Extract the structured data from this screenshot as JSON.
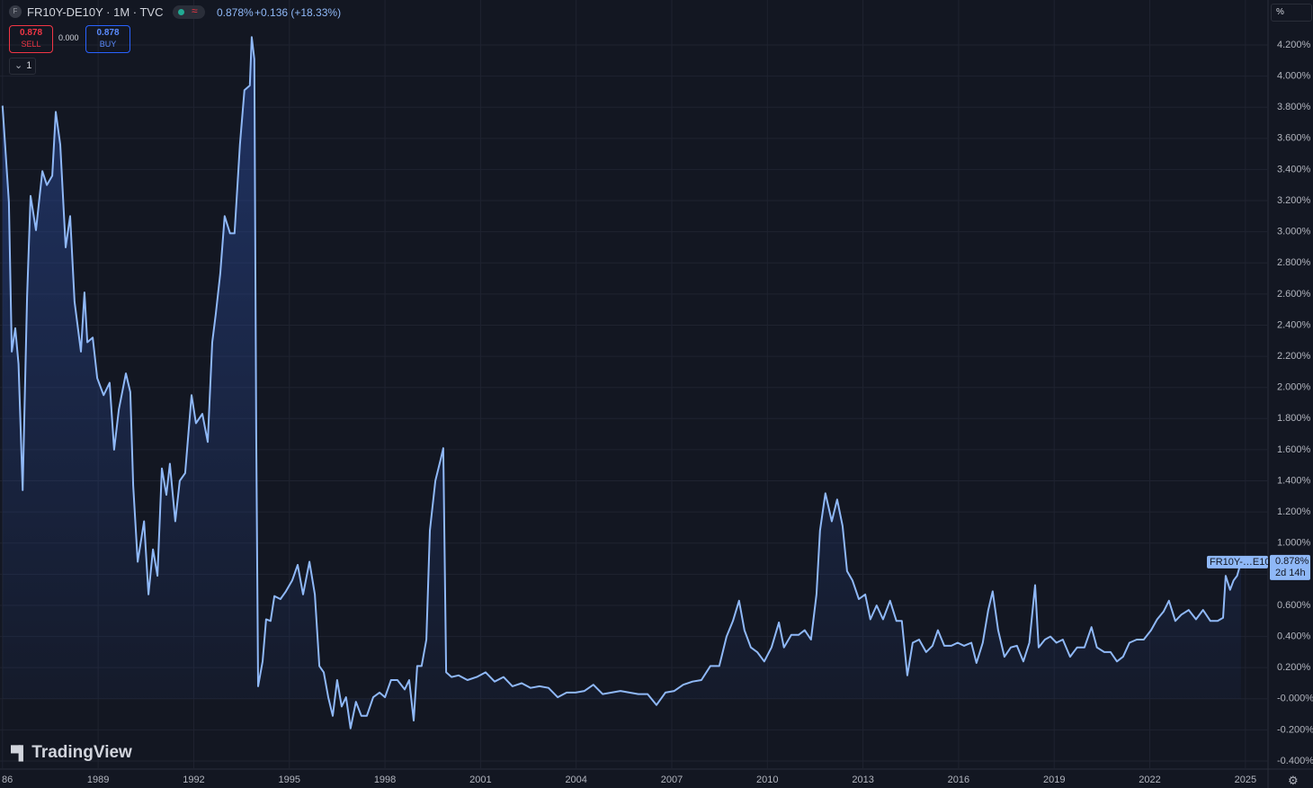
{
  "chart_data": {
    "type": "area",
    "legend_title": "FR10Y-DE10Y · 1M · TVC",
    "last_value": "0.878%",
    "change": "+0.136 (+18.33%)",
    "sell_price": "0.878",
    "sell_label": "SELL",
    "spread": "0.000",
    "buy_price": "0.878",
    "buy_label": "BUY",
    "interval_count": "1",
    "axis_unit": "%",
    "price_tag_name": "FR10Y-…E10Y",
    "price_tag_value": "0.878%",
    "countdown": "2d 14h",
    "logo": "TradingView",
    "color": "#8fb8f7",
    "grid": true,
    "x": [
      1986.0,
      1986.2,
      1986.29,
      1986.4,
      1986.5,
      1986.63,
      1986.77,
      1986.88,
      1987.05,
      1987.25,
      1987.39,
      1987.56,
      1987.67,
      1987.81,
      1987.98,
      1988.12,
      1988.26,
      1988.46,
      1988.57,
      1988.66,
      1988.83,
      1988.97,
      1989.17,
      1989.36,
      1989.5,
      1989.65,
      1989.87,
      1990.01,
      1990.1,
      1990.24,
      1990.44,
      1990.58,
      1990.72,
      1990.86,
      1991.0,
      1991.14,
      1991.25,
      1991.42,
      1991.56,
      1991.73,
      1991.93,
      1992.07,
      1992.27,
      1992.44,
      1992.58,
      1992.69,
      1992.83,
      1992.97,
      1993.14,
      1993.28,
      1993.45,
      1993.59,
      1993.76,
      1993.82,
      1993.9,
      1993.96,
      1994.02,
      1994.16,
      1994.27,
      1994.41,
      1994.53,
      1994.72,
      1994.89,
      1995.09,
      1995.26,
      1995.43,
      1995.63,
      1995.8,
      1995.94,
      1996.08,
      1996.22,
      1996.36,
      1996.5,
      1996.64,
      1996.78,
      1996.92,
      1997.09,
      1997.26,
      1997.43,
      1997.63,
      1997.83,
      1998.0,
      1998.19,
      1998.39,
      1998.62,
      1998.76,
      1998.9,
      1999.01,
      1999.15,
      1999.3,
      1999.41,
      1999.58,
      1999.75,
      1999.83,
      1999.92,
      2000.09,
      2000.31,
      2000.59,
      2000.88,
      2001.16,
      2001.44,
      2001.72,
      2002.0,
      2002.29,
      2002.57,
      2002.85,
      2003.13,
      2003.42,
      2003.7,
      2003.98,
      2004.26,
      2004.54,
      2004.83,
      2005.11,
      2005.39,
      2005.67,
      2005.95,
      2006.24,
      2006.52,
      2006.8,
      2007.08,
      2007.36,
      2007.65,
      2007.93,
      2008.21,
      2008.49,
      2008.72,
      2008.92,
      2009.11,
      2009.28,
      2009.48,
      2009.68,
      2009.9,
      2010.13,
      2010.36,
      2010.52,
      2010.75,
      2010.98,
      2011.17,
      2011.37,
      2011.54,
      2011.65,
      2011.82,
      2012.02,
      2012.19,
      2012.36,
      2012.5,
      2012.67,
      2012.87,
      2013.07,
      2013.23,
      2013.43,
      2013.63,
      2013.85,
      2014.05,
      2014.22,
      2014.39,
      2014.56,
      2014.76,
      2014.98,
      2015.18,
      2015.35,
      2015.55,
      2015.77,
      2015.97,
      2016.17,
      2016.4,
      2016.56,
      2016.76,
      2016.93,
      2017.07,
      2017.24,
      2017.44,
      2017.64,
      2017.83,
      2018.03,
      2018.22,
      2018.4,
      2018.51,
      2018.71,
      2018.88,
      2019.07,
      2019.27,
      2019.5,
      2019.72,
      2019.95,
      2020.17,
      2020.34,
      2020.57,
      2020.77,
      2020.97,
      2021.16,
      2021.36,
      2021.59,
      2021.81,
      2022.04,
      2022.23,
      2022.43,
      2022.6,
      2022.8,
      2022.99,
      2023.22,
      2023.45,
      2023.67,
      2023.9,
      2024.13,
      2024.3,
      2024.38,
      2024.52,
      2024.63,
      2024.74,
      2024.86
    ],
    "values": [
      3.81,
      3.19,
      2.23,
      2.38,
      2.15,
      1.34,
      2.58,
      3.23,
      3.01,
      3.39,
      3.3,
      3.36,
      3.77,
      3.56,
      2.9,
      3.1,
      2.55,
      2.23,
      2.61,
      2.29,
      2.32,
      2.06,
      1.95,
      2.03,
      1.6,
      1.86,
      2.09,
      1.97,
      1.37,
      0.88,
      1.14,
      0.67,
      0.96,
      0.79,
      1.48,
      1.31,
      1.51,
      1.14,
      1.4,
      1.45,
      1.95,
      1.77,
      1.83,
      1.65,
      2.29,
      2.47,
      2.73,
      3.1,
      2.99,
      2.99,
      3.56,
      3.91,
      3.94,
      4.25,
      4.11,
      1.71,
      0.08,
      0.24,
      0.51,
      0.5,
      0.66,
      0.64,
      0.69,
      0.76,
      0.86,
      0.67,
      0.88,
      0.67,
      0.21,
      0.17,
      0.01,
      -0.11,
      0.12,
      -0.05,
      0.01,
      -0.19,
      -0.02,
      -0.11,
      -0.11,
      0.01,
      0.04,
      0.01,
      0.12,
      0.12,
      0.06,
      0.12,
      -0.14,
      0.21,
      0.21,
      0.38,
      1.08,
      1.4,
      1.54,
      1.61,
      0.17,
      0.14,
      0.15,
      0.12,
      0.14,
      0.17,
      0.11,
      0.14,
      0.08,
      0.1,
      0.07,
      0.08,
      0.07,
      0.01,
      0.04,
      0.04,
      0.05,
      0.09,
      0.03,
      0.04,
      0.05,
      0.04,
      0.03,
      0.03,
      -0.04,
      0.04,
      0.05,
      0.09,
      0.11,
      0.12,
      0.21,
      0.21,
      0.4,
      0.5,
      0.63,
      0.44,
      0.33,
      0.3,
      0.24,
      0.33,
      0.49,
      0.33,
      0.41,
      0.41,
      0.44,
      0.38,
      0.67,
      1.08,
      1.32,
      1.14,
      1.28,
      1.11,
      0.82,
      0.76,
      0.64,
      0.67,
      0.51,
      0.6,
      0.51,
      0.63,
      0.5,
      0.5,
      0.15,
      0.36,
      0.38,
      0.3,
      0.34,
      0.44,
      0.34,
      0.34,
      0.36,
      0.34,
      0.36,
      0.23,
      0.36,
      0.57,
      0.69,
      0.44,
      0.27,
      0.33,
      0.34,
      0.24,
      0.36,
      0.73,
      0.33,
      0.38,
      0.4,
      0.36,
      0.38,
      0.27,
      0.33,
      0.33,
      0.46,
      0.33,
      0.3,
      0.3,
      0.24,
      0.27,
      0.36,
      0.38,
      0.38,
      0.44,
      0.51,
      0.56,
      0.63,
      0.5,
      0.54,
      0.57,
      0.51,
      0.57,
      0.5,
      0.5,
      0.52,
      0.79,
      0.7,
      0.76,
      0.79,
      0.878
    ],
    "xlim": [
      1985.92,
      2025.71
    ],
    "xticks": [
      {
        "value": 1986,
        "label": "86"
      },
      1989,
      1992,
      1995,
      1998,
      2001,
      2004,
      2007,
      2010,
      2013,
      2016,
      2019,
      2022,
      2025
    ],
    "ylim": [
      -0.452,
      4.46
    ],
    "yticks": [
      {
        "value": -0.4,
        "label": "-0.400%"
      },
      {
        "value": -0.2,
        "label": "-0.200%"
      },
      {
        "value": 0,
        "label": "-0.000%"
      },
      {
        "value": 0.2,
        "label": "0.200%"
      },
      {
        "value": 0.4,
        "label": "0.400%"
      },
      {
        "value": 0.6,
        "label": "0.600%"
      },
      {
        "value": 0.8,
        "label": "0.800%"
      },
      {
        "value": 1.0,
        "label": "1.000%"
      },
      {
        "value": 1.2,
        "label": "1.200%"
      },
      {
        "value": 1.4,
        "label": "1.400%"
      },
      {
        "value": 1.6,
        "label": "1.600%"
      },
      {
        "value": 1.8,
        "label": "1.800%"
      },
      {
        "value": 2.0,
        "label": "2.000%"
      },
      {
        "value": 2.2,
        "label": "2.200%"
      },
      {
        "value": 2.4,
        "label": "2.400%"
      },
      {
        "value": 2.6,
        "label": "2.600%"
      },
      {
        "value": 2.8,
        "label": "2.800%"
      },
      {
        "value": 3.0,
        "label": "3.000%"
      },
      {
        "value": 3.2,
        "label": "3.200%"
      },
      {
        "value": 3.4,
        "label": "3.400%"
      },
      {
        "value": 3.6,
        "label": "3.600%"
      },
      {
        "value": 3.8,
        "label": "3.800%"
      },
      {
        "value": 4.0,
        "label": "4.000%"
      },
      {
        "value": 4.2,
        "label": "4.200%"
      }
    ]
  }
}
